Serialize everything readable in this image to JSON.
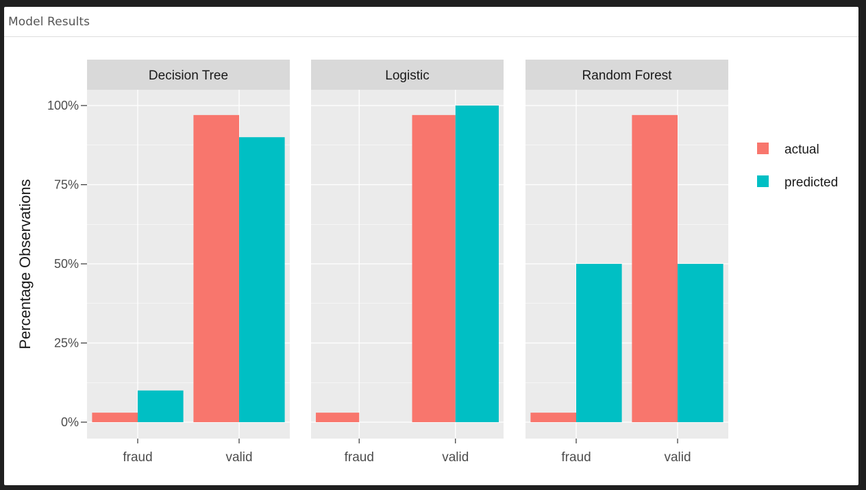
{
  "card": {
    "title": "Model Results"
  },
  "colors": {
    "actual": "#F8766D",
    "predicted": "#00BFC4",
    "panel_bg": "#EBEBEB",
    "strip_bg": "#D9D9D9",
    "grid": "#FFFFFF",
    "axis_text": "#4D4D4D",
    "title_text": "#1A1A1A"
  },
  "chart_data": {
    "type": "bar",
    "title": "",
    "xlabel": "",
    "ylabel": "Percentage Observations",
    "ylim": [
      0,
      1.1
    ],
    "y_ticks": [
      0,
      0.25,
      0.5,
      0.75,
      1.0
    ],
    "y_tick_labels": [
      "0%",
      "25%",
      "50%",
      "75%",
      "100%"
    ],
    "categories": [
      "fraud",
      "valid"
    ],
    "grid": true,
    "legend_position": "right",
    "legend": [
      {
        "name": "actual",
        "color": "#F8766D"
      },
      {
        "name": "predicted",
        "color": "#00BFC4"
      }
    ],
    "facets": [
      {
        "name": "Decision Tree",
        "series": [
          {
            "name": "actual",
            "values": [
              0.03,
              0.97
            ]
          },
          {
            "name": "predicted",
            "values": [
              0.1,
              0.9
            ]
          }
        ]
      },
      {
        "name": "Logistic",
        "series": [
          {
            "name": "actual",
            "values": [
              0.03,
              0.97
            ]
          },
          {
            "name": "predicted",
            "values": [
              0,
              1.0
            ]
          }
        ]
      },
      {
        "name": "Random Forest",
        "series": [
          {
            "name": "actual",
            "values": [
              0.03,
              0.97
            ]
          },
          {
            "name": "predicted",
            "values": [
              0.5,
              0.5
            ]
          }
        ]
      }
    ]
  }
}
